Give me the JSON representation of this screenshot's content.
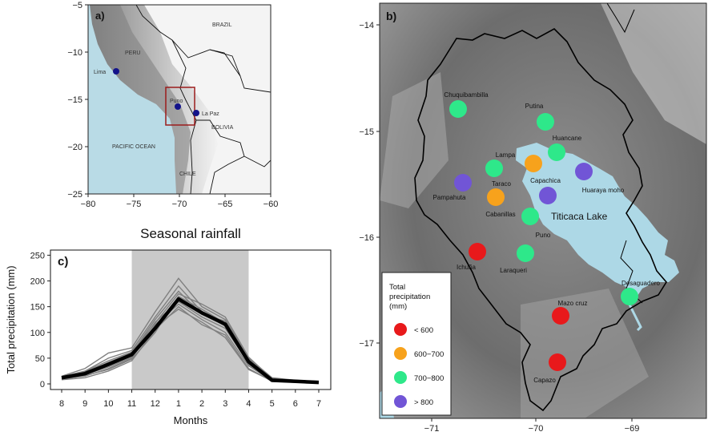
{
  "panel_a": {
    "label": "a)",
    "x_ticks": [
      "−80",
      "−75",
      "−70",
      "−65",
      "−60"
    ],
    "y_ticks": [
      "−5",
      "−10",
      "−15",
      "−20",
      "−25"
    ],
    "region_labels": {
      "brazil": "BRAZIL",
      "peru": "PERU",
      "bolivia": "BOLIVIA",
      "pacific": "PACIFIC OCEAN",
      "chile": "CHILE"
    },
    "cities": {
      "lima": "Lima",
      "puno": "Puno",
      "la_paz": "La Paz"
    },
    "colors": {
      "ocean": "#b9dbe6",
      "city": "#13138a",
      "box": "#9b1c1c"
    }
  },
  "panel_b": {
    "label": "b)",
    "x_ticks": [
      "−71",
      "−70",
      "−69"
    ],
    "y_ticks": [
      "−14",
      "−15",
      "−16",
      "−17"
    ],
    "lake_label": "Titicaca Lake",
    "colors": {
      "lake": "#add8e6",
      "lt600": "#e8191b",
      "600to700": "#f7a21c",
      "700to800": "#2ee88a",
      "gt800": "#7155d6"
    },
    "stations": [
      {
        "name": "Chuquibambilla",
        "class": "700to800"
      },
      {
        "name": "Putina",
        "class": "700to800"
      },
      {
        "name": "Huancane",
        "class": "700to800"
      },
      {
        "name": "Lampa",
        "class": "700to800"
      },
      {
        "name": "Capachica",
        "class": "600to700"
      },
      {
        "name": "Huaraya moho",
        "class": "gt800"
      },
      {
        "name": "Pampahuta",
        "class": "gt800"
      },
      {
        "name": "Taraco",
        "class": "gt800"
      },
      {
        "name": "Cabanillas",
        "class": "600to700"
      },
      {
        "name": "Puno",
        "class": "700to800"
      },
      {
        "name": "Ichuña",
        "class": "lt600"
      },
      {
        "name": "Laraqueri",
        "class": "700to800"
      },
      {
        "name": "Desaguadero",
        "class": "700to800"
      },
      {
        "name": "Mazo cruz",
        "class": "lt600"
      },
      {
        "name": "Capazo",
        "class": "lt600"
      }
    ],
    "legend": {
      "title_lines": [
        "Total",
        "precipitation",
        "(mm)"
      ],
      "items": [
        {
          "label": "< 600",
          "class": "lt600"
        },
        {
          "label": "600−700",
          "class": "600to700"
        },
        {
          "label": "700−800",
          "class": "700to800"
        },
        {
          "label": "> 800",
          "class": "gt800"
        }
      ]
    }
  },
  "chart_data": {
    "type": "line",
    "label": "c)",
    "title": "Seasonal rainfall",
    "xlabel": "Months",
    "ylabel": "Total precipitation (mm)",
    "categories": [
      "8",
      "9",
      "10",
      "11",
      "12",
      "1",
      "2",
      "3",
      "4",
      "5",
      "6",
      "7"
    ],
    "ylim": [
      0,
      260
    ],
    "y_ticks": [
      "0",
      "50",
      "100",
      "150",
      "200",
      "250"
    ],
    "shaded_months": [
      "11",
      "4"
    ],
    "series": [
      {
        "values": [
          12,
          20,
          38,
          57,
          108,
          165,
          138,
          116,
          43,
          7,
          5,
          3
        ]
      },
      {
        "values": [
          8,
          12,
          25,
          45,
          105,
          150,
          115,
          95,
          30,
          5,
          3,
          2
        ]
      },
      {
        "values": [
          10,
          15,
          30,
          50,
          115,
          155,
          125,
          100,
          35,
          6,
          4,
          3
        ]
      },
      {
        "values": [
          12,
          18,
          35,
          55,
          120,
          160,
          130,
          108,
          40,
          7,
          5,
          3
        ]
      },
      {
        "values": [
          14,
          25,
          50,
          65,
          130,
          190,
          140,
          112,
          45,
          10,
          6,
          4
        ]
      },
      {
        "values": [
          15,
          30,
          60,
          70,
          140,
          205,
          150,
          125,
          50,
          12,
          7,
          5
        ]
      },
      {
        "values": [
          11,
          22,
          42,
          60,
          125,
          180,
          135,
          122,
          48,
          9,
          5,
          3
        ]
      },
      {
        "values": [
          9,
          16,
          28,
          48,
          100,
          170,
          145,
          118,
          38,
          6,
          4,
          2
        ]
      },
      {
        "values": [
          13,
          24,
          45,
          62,
          118,
          175,
          155,
          130,
          52,
          10,
          6,
          4
        ]
      },
      {
        "values": [
          10,
          18,
          33,
          52,
          112,
          145,
          120,
          90,
          28,
          6,
          4,
          2
        ]
      }
    ],
    "colors": {
      "series": "#808080",
      "mean": "#000000",
      "shade": "#c9c9c9"
    }
  }
}
